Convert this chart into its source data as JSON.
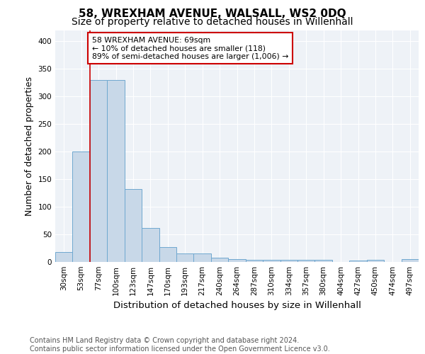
{
  "title1": "58, WREXHAM AVENUE, WALSALL, WS2 0DQ",
  "title2": "Size of property relative to detached houses in Willenhall",
  "xlabel": "Distribution of detached houses by size in Willenhall",
  "ylabel": "Number of detached properties",
  "bar_color": "#c8d8e8",
  "bar_edge_color": "#6fa8d0",
  "annotation_line_color": "#cc0000",
  "annotation_box_color": "#cc0000",
  "annotation_text": "58 WREXHAM AVENUE: 69sqm\n← 10% of detached houses are smaller (118)\n89% of semi-detached houses are larger (1,006) →",
  "categories": [
    "30sqm",
    "53sqm",
    "77sqm",
    "100sqm",
    "123sqm",
    "147sqm",
    "170sqm",
    "193sqm",
    "217sqm",
    "240sqm",
    "264sqm",
    "287sqm",
    "310sqm",
    "334sqm",
    "357sqm",
    "380sqm",
    "404sqm",
    "427sqm",
    "450sqm",
    "474sqm",
    "497sqm"
  ],
  "values": [
    18,
    200,
    330,
    330,
    132,
    62,
    27,
    16,
    15,
    8,
    5,
    4,
    4,
    4,
    4,
    4,
    0,
    3,
    4,
    0,
    5
  ],
  "red_line_x": 1.5,
  "ylim": [
    0,
    420
  ],
  "yticks": [
    0,
    50,
    100,
    150,
    200,
    250,
    300,
    350,
    400
  ],
  "footer_text": "Contains HM Land Registry data © Crown copyright and database right 2024.\nContains public sector information licensed under the Open Government Licence v3.0.",
  "background_color": "#eef2f7",
  "title_fontsize": 11,
  "subtitle_fontsize": 10,
  "xlabel_fontsize": 9,
  "ylabel_fontsize": 9,
  "tick_fontsize": 7.5,
  "footer_fontsize": 7,
  "ann_fontsize": 7.8
}
